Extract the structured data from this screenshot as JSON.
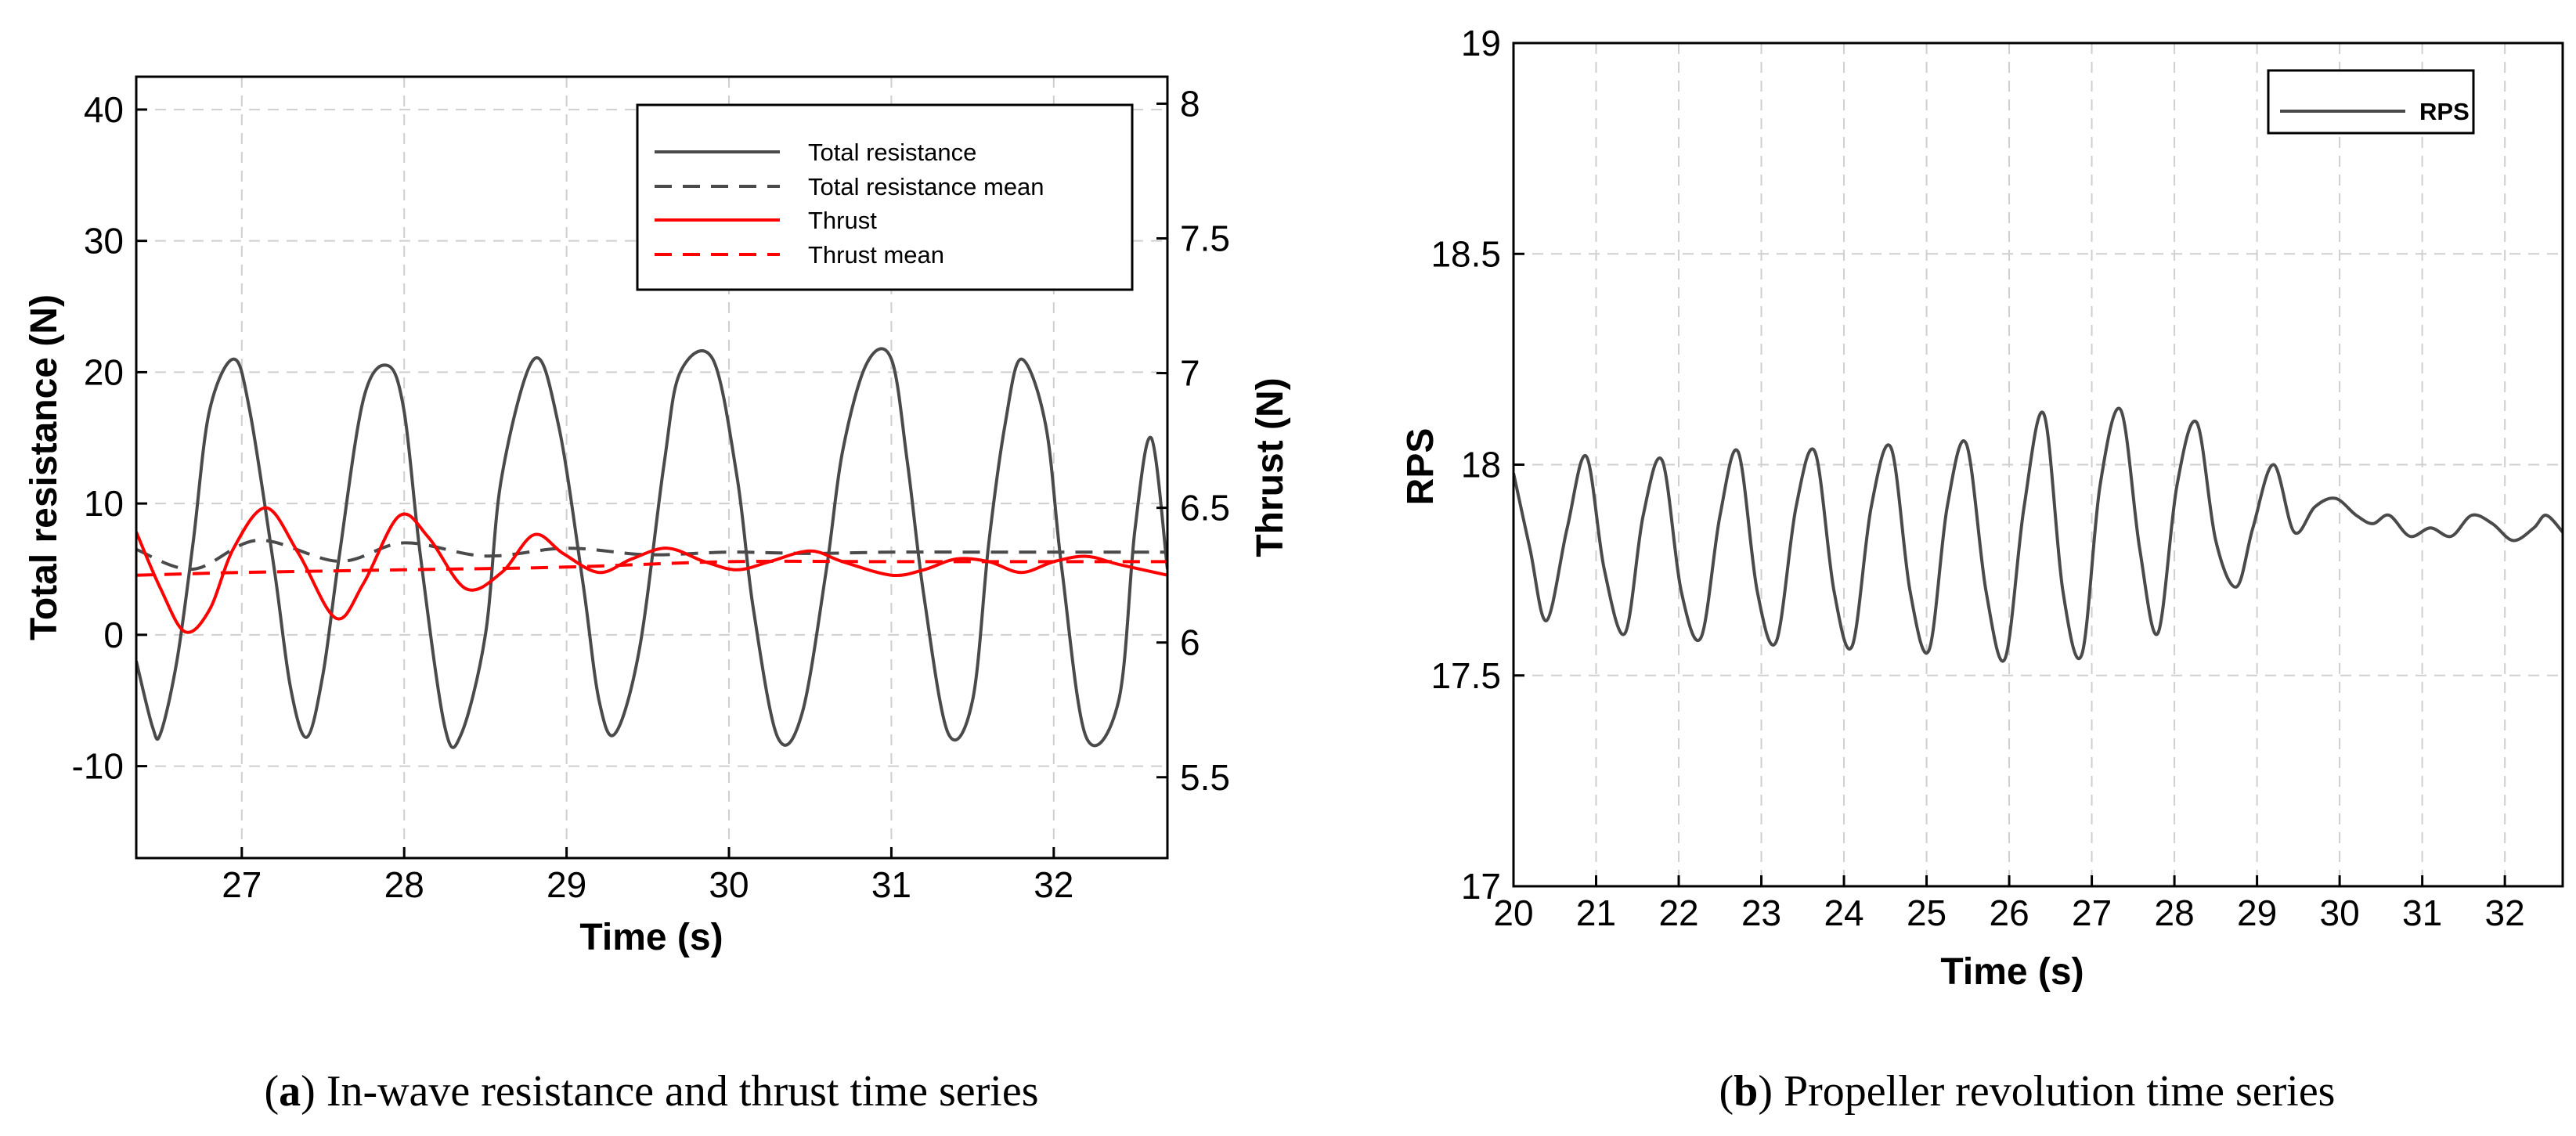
{
  "chart_data": [
    {
      "id": "a",
      "type": "line",
      "xlabel": "Time (s)",
      "ylabel": "Total resistance (N)",
      "y2label": "Thrust (N)",
      "xlim": [
        26.35,
        32.7
      ],
      "ylim": [
        -17,
        42.5
      ],
      "y2lim": [
        5.2,
        8.1
      ],
      "xticks": [
        "27",
        "28",
        "29",
        "30",
        "31",
        "32"
      ],
      "yticks": [
        "40",
        "30",
        "20",
        "10",
        "0",
        "-10"
      ],
      "y2ticks": [
        "8",
        "7.5",
        "7",
        "6.5",
        "6",
        "5.5"
      ],
      "grid": true,
      "legend_position": "top-right",
      "series": [
        {
          "name": "Total resistance",
          "axis": "left",
          "color": "#4a4a4a",
          "style": "solid",
          "x": [
            26.35,
            26.45,
            26.5,
            26.6,
            26.7,
            26.8,
            26.95,
            27.05,
            27.2,
            27.3,
            27.4,
            27.5,
            27.6,
            27.75,
            27.9,
            28.0,
            28.1,
            28.25,
            28.35,
            28.5,
            28.6,
            28.8,
            28.95,
            29.1,
            29.2,
            29.3,
            29.45,
            29.6,
            29.7,
            29.9,
            30.05,
            30.15,
            30.3,
            30.45,
            30.6,
            30.7,
            30.85,
            31.0,
            31.1,
            31.2,
            31.35,
            31.5,
            31.6,
            31.7,
            31.8,
            31.95,
            32.05,
            32.2,
            32.4,
            32.5,
            32.6,
            32.7
          ],
          "y": [
            -2,
            -7,
            -7.5,
            -2,
            7,
            17,
            21,
            17,
            5,
            -4,
            -7.8,
            -3,
            6,
            18,
            20.5,
            17,
            6,
            -7,
            -7.6,
            0,
            12,
            21,
            16,
            4,
            -5,
            -7.5,
            -1,
            13,
            20,
            21,
            12,
            2,
            -7.8,
            -6,
            5,
            14,
            20.7,
            21,
            13,
            3,
            -7.5,
            -5,
            7,
            16,
            21,
            16,
            5,
            -7.8,
            -5,
            8,
            15,
            5
          ]
        },
        {
          "name": "Total resistance mean",
          "axis": "left",
          "color": "#4a4a4a",
          "style": "dashed",
          "x": [
            26.35,
            26.7,
            27.1,
            27.6,
            28.0,
            28.5,
            29.0,
            29.5,
            30.0,
            30.5,
            31.0,
            31.5,
            32.0,
            32.7
          ],
          "y": [
            6.5,
            5,
            7.2,
            5.6,
            7,
            6,
            6.6,
            6.1,
            6.3,
            6.2,
            6.3,
            6.3,
            6.3,
            6.3
          ]
        },
        {
          "name": "Thrust",
          "axis": "right",
          "color": "#ff0000",
          "style": "solid",
          "x": [
            26.35,
            26.5,
            26.65,
            26.8,
            26.95,
            27.15,
            27.35,
            27.58,
            27.75,
            27.97,
            28.15,
            28.38,
            28.6,
            28.8,
            28.98,
            29.2,
            29.4,
            29.62,
            29.85,
            30.05,
            30.25,
            30.5,
            30.7,
            31.0,
            31.2,
            31.4,
            31.6,
            31.8,
            32.0,
            32.2,
            32.4,
            32.7
          ],
          "y": [
            6.41,
            6.2,
            6.04,
            6.12,
            6.35,
            6.5,
            6.33,
            6.09,
            6.22,
            6.47,
            6.39,
            6.2,
            6.26,
            6.4,
            6.33,
            6.26,
            6.31,
            6.35,
            6.3,
            6.27,
            6.3,
            6.34,
            6.3,
            6.25,
            6.27,
            6.31,
            6.3,
            6.26,
            6.3,
            6.32,
            6.29,
            6.25
          ]
        },
        {
          "name": "Thrust mean",
          "axis": "right",
          "color": "#ff0000",
          "style": "dashed",
          "x": [
            26.35,
            27.0,
            28.0,
            29.0,
            30.0,
            31.0,
            32.0,
            32.7
          ],
          "y": [
            6.25,
            6.26,
            6.27,
            6.28,
            6.3,
            6.3,
            6.3,
            6.3
          ]
        }
      ]
    },
    {
      "id": "b",
      "type": "line",
      "xlabel": "Time (s)",
      "ylabel": "RPS",
      "xlim": [
        20,
        32.7
      ],
      "ylim": [
        17,
        19
      ],
      "xticks": [
        "20",
        "21",
        "22",
        "23",
        "24",
        "25",
        "26",
        "27",
        "28",
        "29",
        "30",
        "31",
        "32"
      ],
      "yticks": [
        "19",
        "18.5",
        "18",
        "17.5",
        "17"
      ],
      "grid": true,
      "legend_position": "top-right",
      "series": [
        {
          "name": "RPS",
          "color": "#4a4a4a",
          "style": "solid",
          "x": [
            20.0,
            20.2,
            20.4,
            20.65,
            20.88,
            21.1,
            21.35,
            21.57,
            21.8,
            22.03,
            22.27,
            22.5,
            22.72,
            22.95,
            23.18,
            23.42,
            23.65,
            23.88,
            24.1,
            24.33,
            24.57,
            24.8,
            25.03,
            25.25,
            25.48,
            25.72,
            25.95,
            26.18,
            26.42,
            26.65,
            26.88,
            27.1,
            27.35,
            27.58,
            27.8,
            28.03,
            28.27,
            28.5,
            28.75,
            28.95,
            29.2,
            29.45,
            29.7,
            29.95,
            30.2,
            30.4,
            30.6,
            30.85,
            31.1,
            31.35,
            31.6,
            31.85,
            32.1,
            32.35,
            32.5,
            32.7
          ],
          "y": [
            17.98,
            17.8,
            17.63,
            17.85,
            18.02,
            17.75,
            17.6,
            17.88,
            18.01,
            17.7,
            17.59,
            17.88,
            18.03,
            17.7,
            17.58,
            17.9,
            18.03,
            17.7,
            17.57,
            17.9,
            18.04,
            17.7,
            17.56,
            17.9,
            18.05,
            17.7,
            17.54,
            17.9,
            18.12,
            17.7,
            17.55,
            17.95,
            18.13,
            17.8,
            17.6,
            17.95,
            18.1,
            17.82,
            17.71,
            17.85,
            18.0,
            17.84,
            17.9,
            17.92,
            17.88,
            17.86,
            17.88,
            17.83,
            17.85,
            17.83,
            17.88,
            17.86,
            17.82,
            17.85,
            17.88,
            17.84
          ]
        }
      ]
    }
  ],
  "captions": {
    "a": {
      "label": "(a)",
      "letter": "a",
      "text": " In-wave resistance and thrust time series"
    },
    "b": {
      "label": "(b)",
      "letter": "b",
      "text": " Propeller revolution time series"
    }
  }
}
